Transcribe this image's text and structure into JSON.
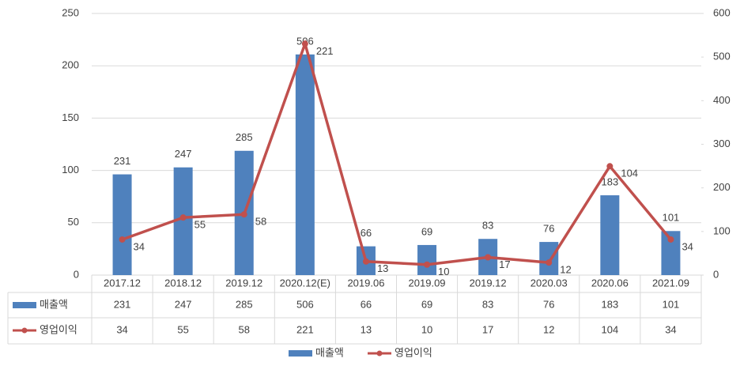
{
  "chart_data": {
    "type": "bar",
    "categories": [
      "2017.12",
      "2018.12",
      "2019.12",
      "2020.12(E)",
      "2019.06",
      "2019.09",
      "2019.12",
      "2020.03",
      "2020.06",
      "2021.09"
    ],
    "series": [
      {
        "name": "매출액",
        "type": "bar",
        "axis": "y2",
        "color": "#4f81bd",
        "values": [
          231,
          247,
          285,
          506,
          66,
          69,
          83,
          76,
          183,
          101
        ]
      },
      {
        "name": "영업이익",
        "type": "line",
        "axis": "y",
        "color": "#c0504d",
        "values": [
          34,
          55,
          58,
          221,
          13,
          10,
          17,
          12,
          104,
          34
        ]
      }
    ],
    "ylim": [
      0,
      250
    ],
    "yticks": [
      0,
      50,
      100,
      150,
      200,
      250
    ],
    "y2lim": [
      0,
      600
    ],
    "y2ticks": [
      0,
      100,
      200,
      300,
      400,
      500,
      600
    ],
    "grid": true,
    "legend": "bottom",
    "data_table": true
  }
}
